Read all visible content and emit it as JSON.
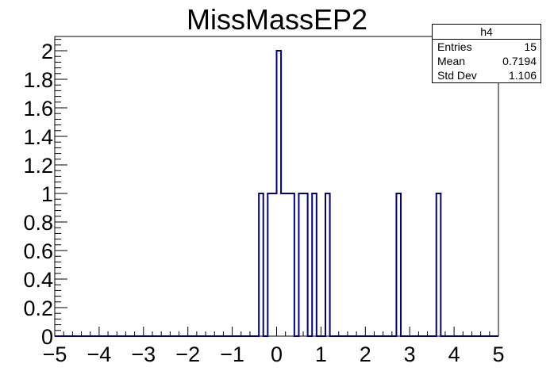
{
  "chart_data": {
    "type": "bar",
    "title": "MissMassEP2",
    "xlabel": "",
    "ylabel": "",
    "xlim": [
      -5,
      5
    ],
    "ylim": [
      0,
      2.1
    ],
    "bin_width": 0.1,
    "x_ticks": [
      "−5",
      "−4",
      "−3",
      "−2",
      "−1",
      "0",
      "1",
      "2",
      "3",
      "4",
      "5"
    ],
    "y_ticks": [
      "0",
      "0.2",
      "0.4",
      "0.6",
      "0.8",
      "1",
      "1.2",
      "1.4",
      "1.6",
      "1.8",
      "2"
    ],
    "bins": [
      {
        "x0": -0.4,
        "count": 1
      },
      {
        "x0": -0.2,
        "count": 1
      },
      {
        "x0": -0.1,
        "count": 1
      },
      {
        "x0": 0.0,
        "count": 2
      },
      {
        "x0": 0.1,
        "count": 1
      },
      {
        "x0": 0.2,
        "count": 1
      },
      {
        "x0": 0.3,
        "count": 1
      },
      {
        "x0": 0.5,
        "count": 1
      },
      {
        "x0": 0.6,
        "count": 1
      },
      {
        "x0": 0.8,
        "count": 1
      },
      {
        "x0": 1.1,
        "count": 1
      },
      {
        "x0": 2.7,
        "count": 1
      },
      {
        "x0": 3.6,
        "count": 1
      }
    ],
    "line_color": "#000080",
    "grid": false,
    "legend": "top-right"
  },
  "stats_box": {
    "name": "h4",
    "entries_label": "Entries",
    "entries_value": "15",
    "mean_label": "Mean",
    "mean_value": "0.7194",
    "stddev_label": "Std Dev",
    "stddev_value": "1.106"
  }
}
